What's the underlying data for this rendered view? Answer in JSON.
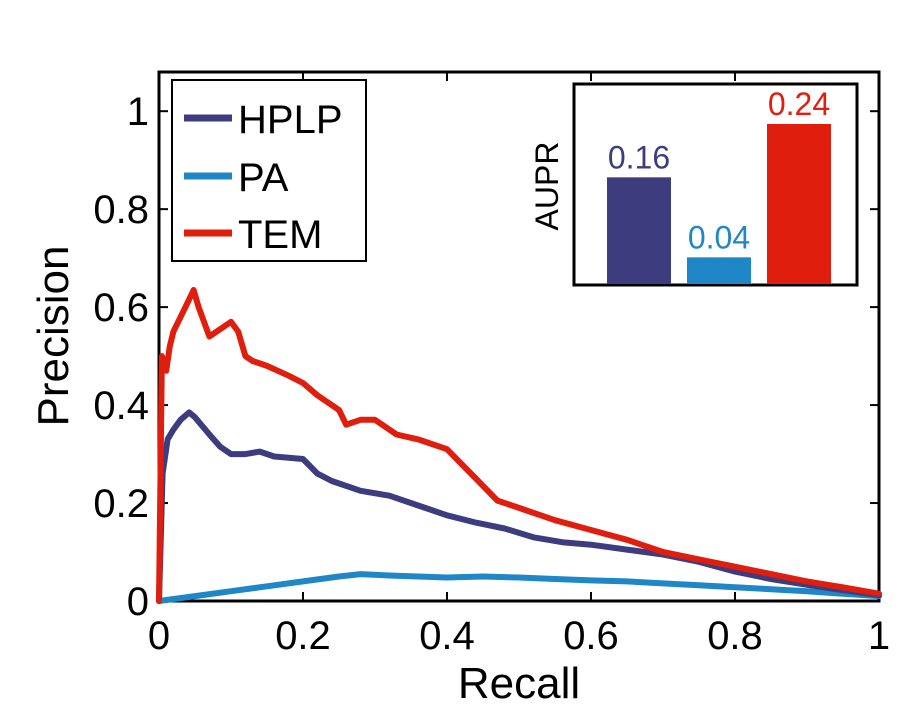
{
  "chart_data": {
    "type": "line",
    "xlabel": "Recall",
    "ylabel": "Precision",
    "xlim": [
      0,
      1
    ],
    "ylim": [
      0,
      1.08
    ],
    "x_ticks": [
      0,
      0.2,
      0.4,
      0.6,
      0.8,
      1
    ],
    "x_tick_labels": [
      "0",
      "0.2",
      "0.4",
      "0.6",
      "0.8",
      "1"
    ],
    "y_ticks": [
      0,
      0.2,
      0.4,
      0.6,
      0.8,
      1
    ],
    "y_tick_labels": [
      "0",
      "0.2",
      "0.4",
      "0.6",
      "0.8",
      "1"
    ],
    "legend_position": "top-left",
    "series": [
      {
        "name": "HPLP",
        "color": "#3d3c7f",
        "x": [
          0,
          0.005,
          0.012,
          0.02,
          0.03,
          0.042,
          0.05,
          0.07,
          0.085,
          0.1,
          0.12,
          0.14,
          0.16,
          0.2,
          0.22,
          0.24,
          0.28,
          0.32,
          0.36,
          0.4,
          0.44,
          0.48,
          0.52,
          0.56,
          0.6,
          0.65,
          0.7,
          0.75,
          0.8,
          0.85,
          0.9,
          0.95,
          1.0
        ],
        "y": [
          0.0,
          0.26,
          0.33,
          0.35,
          0.37,
          0.385,
          0.375,
          0.34,
          0.315,
          0.3,
          0.3,
          0.305,
          0.295,
          0.29,
          0.26,
          0.245,
          0.225,
          0.215,
          0.195,
          0.175,
          0.16,
          0.148,
          0.13,
          0.12,
          0.115,
          0.105,
          0.095,
          0.08,
          0.06,
          0.045,
          0.033,
          0.022,
          0.012
        ]
      },
      {
        "name": "PA",
        "color": "#1f86c7",
        "x": [
          0,
          0.05,
          0.1,
          0.15,
          0.2,
          0.25,
          0.28,
          0.32,
          0.36,
          0.4,
          0.45,
          0.5,
          0.55,
          0.6,
          0.65,
          0.7,
          0.75,
          0.8,
          0.85,
          0.9,
          0.95,
          1.0
        ],
        "y": [
          0.0,
          0.01,
          0.02,
          0.03,
          0.04,
          0.05,
          0.055,
          0.052,
          0.05,
          0.048,
          0.05,
          0.048,
          0.045,
          0.042,
          0.04,
          0.036,
          0.032,
          0.028,
          0.024,
          0.02,
          0.015,
          0.01
        ]
      },
      {
        "name": "TEM",
        "color": "#e01e0e",
        "x": [
          0,
          0.004,
          0.01,
          0.015,
          0.02,
          0.03,
          0.04,
          0.048,
          0.055,
          0.07,
          0.08,
          0.1,
          0.11,
          0.12,
          0.13,
          0.15,
          0.18,
          0.2,
          0.22,
          0.25,
          0.26,
          0.28,
          0.3,
          0.33,
          0.36,
          0.4,
          0.42,
          0.44,
          0.47,
          0.5,
          0.55,
          0.6,
          0.65,
          0.7,
          0.75,
          0.8,
          0.85,
          0.9,
          0.95,
          1.0
        ],
        "y": [
          0.0,
          0.5,
          0.47,
          0.52,
          0.55,
          0.58,
          0.61,
          0.635,
          0.6,
          0.54,
          0.55,
          0.57,
          0.55,
          0.5,
          0.49,
          0.48,
          0.46,
          0.445,
          0.42,
          0.39,
          0.36,
          0.37,
          0.37,
          0.34,
          0.33,
          0.31,
          0.28,
          0.25,
          0.205,
          0.19,
          0.165,
          0.145,
          0.125,
          0.1,
          0.085,
          0.07,
          0.055,
          0.04,
          0.028,
          0.015
        ]
      }
    ],
    "inset": {
      "type": "bar",
      "ylabel": "AUPR",
      "ylim": [
        0,
        0.3
      ],
      "categories": [
        "HPLP",
        "PA",
        "TEM"
      ],
      "values": [
        0.16,
        0.04,
        0.24
      ],
      "labels": [
        "0.16",
        "0.04",
        "0.24"
      ],
      "colors": [
        "#3d3c7f",
        "#1f86c7",
        "#e01e0e"
      ],
      "position": "top-right"
    }
  }
}
